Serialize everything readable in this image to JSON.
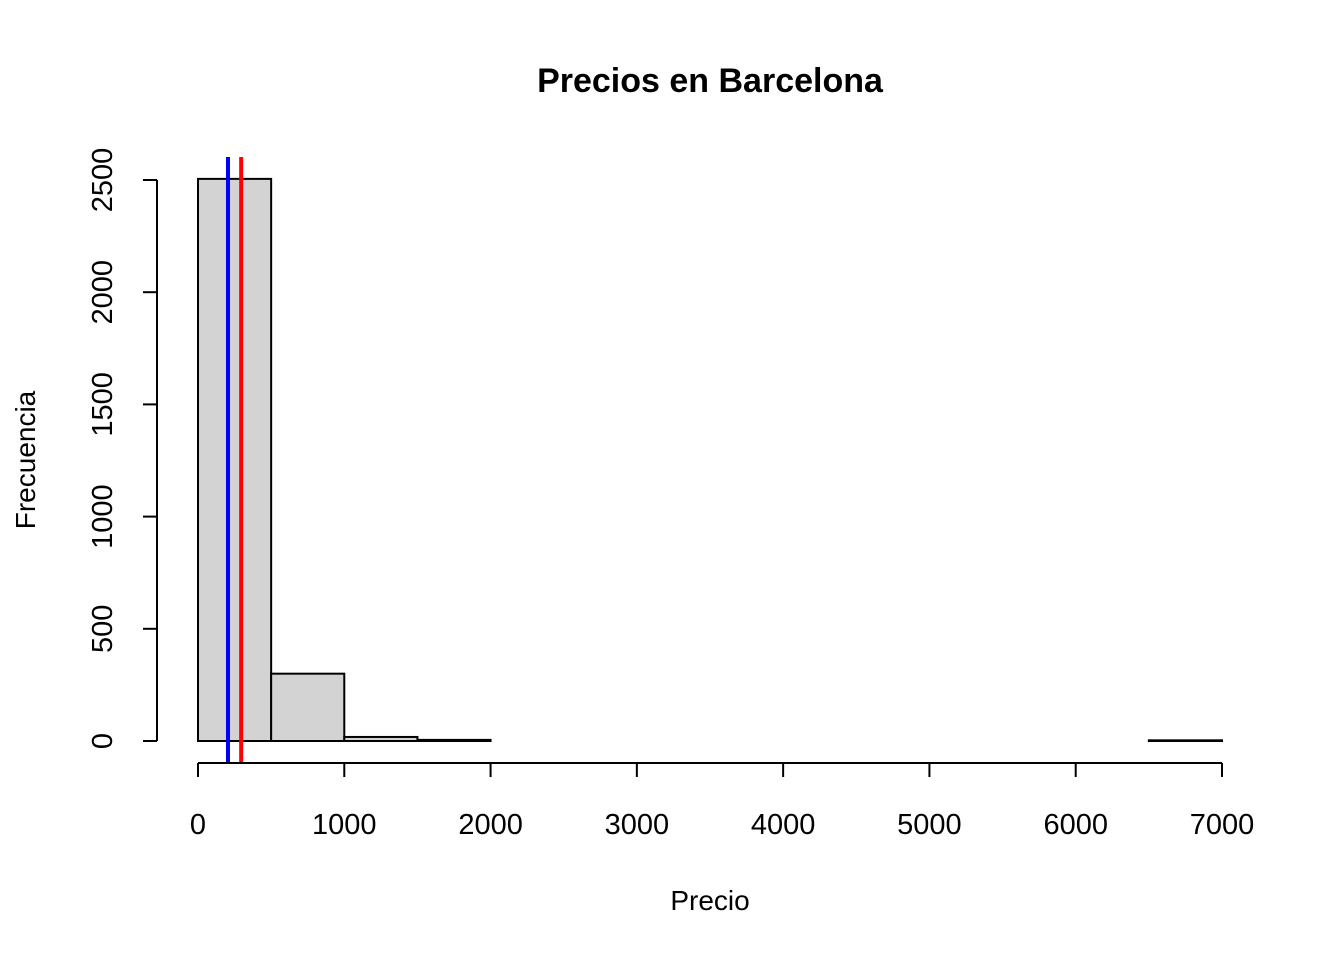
{
  "chart_data": {
    "type": "bar",
    "title": "Precios en Barcelona",
    "xlabel": "Precio",
    "ylabel": "Frecuencia",
    "xlim": [
      0,
      7000
    ],
    "ylim": [
      0,
      2500
    ],
    "x_ticks": [
      0,
      1000,
      2000,
      3000,
      4000,
      5000,
      6000,
      7000
    ],
    "x_tick_labels": [
      "0",
      "1000",
      "2000",
      "3000",
      "4000",
      "5000",
      "6000",
      "7000"
    ],
    "y_ticks": [
      0,
      500,
      1000,
      1500,
      2000,
      2500
    ],
    "y_tick_labels": [
      "0",
      "500",
      "1000",
      "1500",
      "2000",
      "2500"
    ],
    "bins": [
      {
        "x0": 0,
        "x1": 500,
        "count": 2505
      },
      {
        "x0": 500,
        "x1": 1000,
        "count": 300
      },
      {
        "x0": 1000,
        "x1": 1500,
        "count": 18
      },
      {
        "x0": 1500,
        "x1": 2000,
        "count": 5
      },
      {
        "x0": 2000,
        "x1": 2500,
        "count": 0
      },
      {
        "x0": 2500,
        "x1": 3000,
        "count": 0
      },
      {
        "x0": 3000,
        "x1": 3500,
        "count": 0
      },
      {
        "x0": 3500,
        "x1": 4000,
        "count": 0
      },
      {
        "x0": 4000,
        "x1": 4500,
        "count": 0
      },
      {
        "x0": 4500,
        "x1": 5000,
        "count": 0
      },
      {
        "x0": 5000,
        "x1": 5500,
        "count": 0
      },
      {
        "x0": 5500,
        "x1": 6000,
        "count": 0
      },
      {
        "x0": 6000,
        "x1": 6500,
        "count": 0
      },
      {
        "x0": 6500,
        "x1": 7000,
        "count": 3
      }
    ],
    "reference_lines": [
      {
        "x": 205,
        "color": "#0000ff"
      },
      {
        "x": 295,
        "color": "#ff0000"
      }
    ],
    "grid": false,
    "legend": "none"
  }
}
